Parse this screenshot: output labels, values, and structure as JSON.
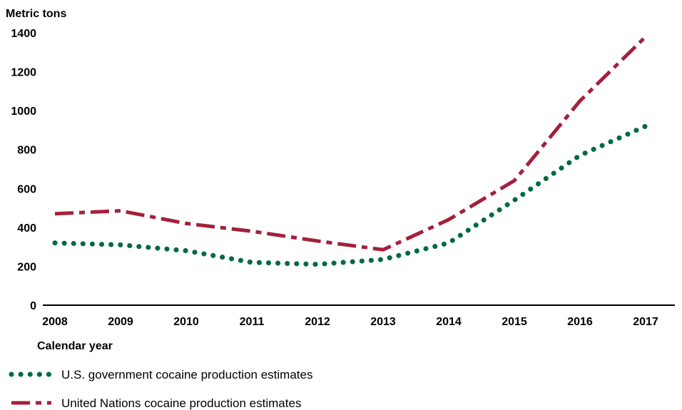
{
  "chart_data": {
    "type": "line",
    "ylabel": "Metric tons",
    "xlabel": "Calendar year",
    "x": [
      "2008",
      "2009",
      "2010",
      "2011",
      "2012",
      "2013",
      "2014",
      "2015",
      "2016",
      "2017"
    ],
    "ylim": [
      0,
      1400
    ],
    "yticks": [
      0,
      200,
      400,
      600,
      800,
      1000,
      1200,
      1400
    ],
    "grid": false,
    "legend_position": "bottom-left",
    "series": [
      {
        "name": "U.S. government cocaine production estimates",
        "values": [
          320,
          310,
          280,
          220,
          210,
          235,
          320,
          540,
          770,
          920
        ],
        "color": "#006b3f",
        "style": "dotted"
      },
      {
        "name": "United Nations cocaine production estimates",
        "values": [
          470,
          485,
          420,
          380,
          330,
          285,
          440,
          640,
          1050,
          1380
        ],
        "color": "#a3203b",
        "style": "dash-dot"
      }
    ]
  }
}
